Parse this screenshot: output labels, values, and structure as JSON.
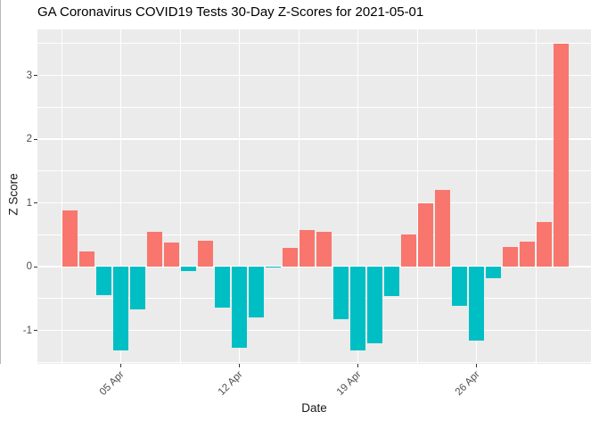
{
  "title": "GA Coronavirus COVID19 Tests 30-Day Z-Scores for 2021-05-01",
  "chart_data": {
    "type": "bar",
    "title": "GA Coronavirus COVID19 Tests 30-Day Z-Scores for 2021-05-01",
    "xlabel": "Date",
    "ylabel": "Z Score",
    "x": [
      "2021-04-02",
      "2021-04-03",
      "2021-04-04",
      "2021-04-05",
      "2021-04-06",
      "2021-04-07",
      "2021-04-08",
      "2021-04-09",
      "2021-04-10",
      "2021-04-11",
      "2021-04-12",
      "2021-04-13",
      "2021-04-14",
      "2021-04-15",
      "2021-04-16",
      "2021-04-17",
      "2021-04-18",
      "2021-04-19",
      "2021-04-20",
      "2021-04-21",
      "2021-04-22",
      "2021-04-23",
      "2021-04-24",
      "2021-04-25",
      "2021-04-26",
      "2021-04-27",
      "2021-04-28",
      "2021-04-29",
      "2021-04-30",
      "2021-05-01"
    ],
    "values": [
      0.88,
      0.24,
      -0.45,
      -1.32,
      -0.67,
      0.54,
      0.38,
      -0.07,
      0.4,
      -0.65,
      -1.27,
      -0.8,
      -0.02,
      0.3,
      0.57,
      0.55,
      -0.83,
      -1.31,
      -1.2,
      -0.46,
      0.51,
      1.0,
      1.2,
      -0.61,
      -1.16,
      -0.18,
      0.31,
      0.39,
      0.7,
      3.5
    ],
    "x_tick_labels": [
      "05 Apr",
      "12 Apr",
      "19 Apr",
      "26 Apr"
    ],
    "x_tick_day_index": [
      3,
      10,
      17,
      24
    ],
    "x_minor_day_index": [
      -0.5,
      6.5,
      13.5,
      20.5,
      27.5
    ],
    "y_ticks": [
      -1,
      0,
      1,
      2,
      3
    ],
    "y_tick_labels": [
      "-1",
      "0",
      "1",
      "2",
      "3"
    ],
    "y_minor_ticks": [
      -1.5,
      -0.5,
      0.5,
      1.5,
      2.5,
      3.5
    ],
    "ylim": [
      -1.52,
      3.72
    ],
    "grid": true,
    "legend_position": "none",
    "colors": {
      "positive_bar": "#F8766D",
      "negative_bar": "#00BFC4",
      "panel_background": "#EBEBEB",
      "gridline": "#FFFFFF",
      "tick_label": "#4D4D4D",
      "tick_mark": "#333333",
      "axis_title": "#1A1A1A",
      "title": "#000000"
    }
  }
}
